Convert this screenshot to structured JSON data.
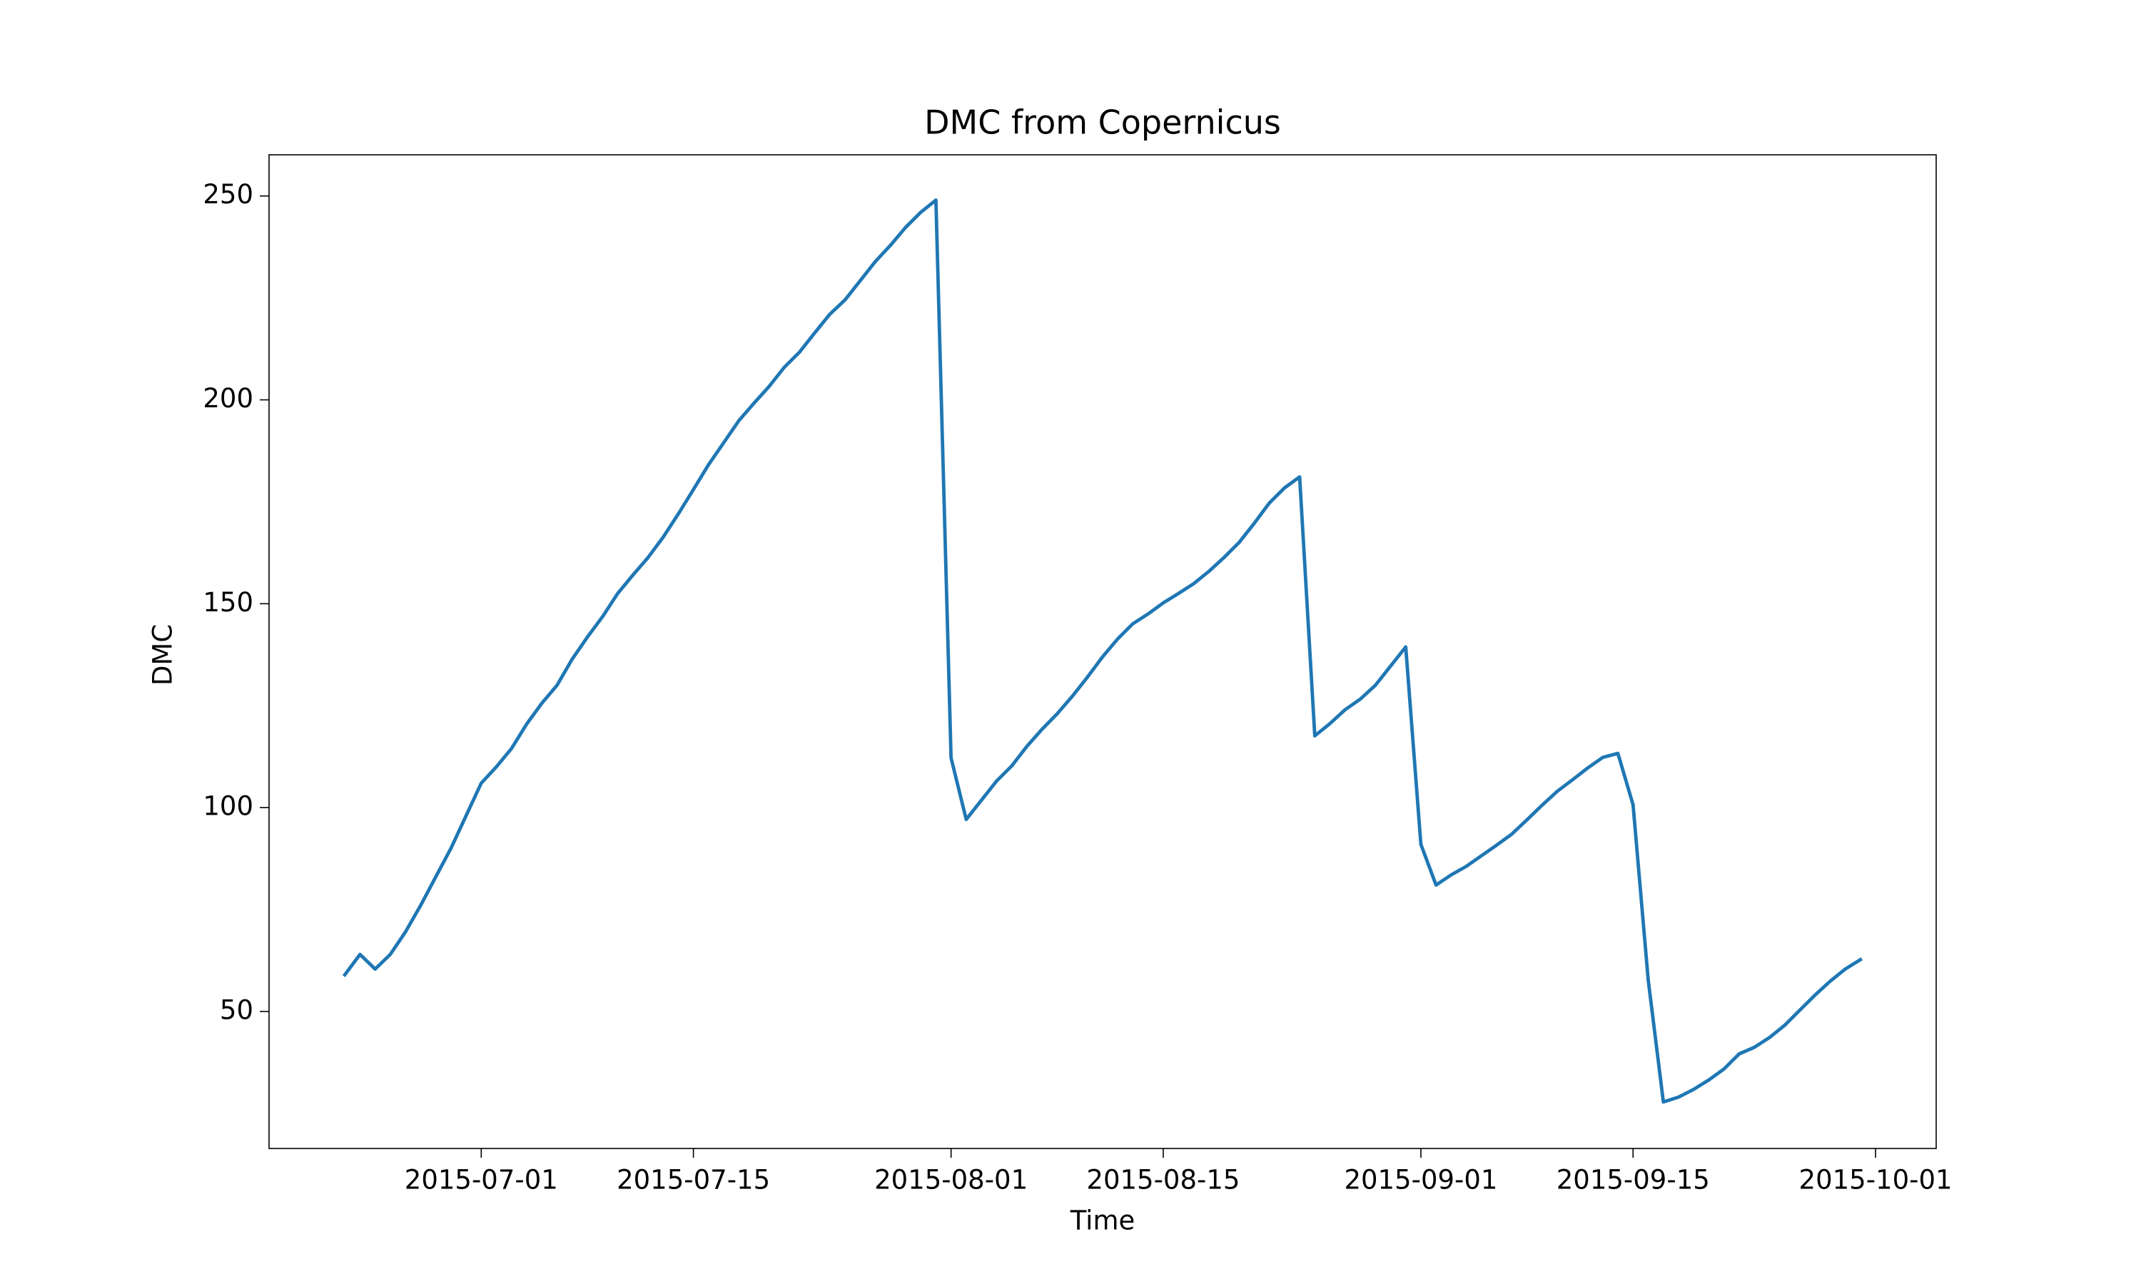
{
  "chart_data": {
    "type": "line",
    "title": "DMC from Copernicus",
    "x_label": "Time",
    "y_label": "DMC",
    "x": [
      "2015-06-22",
      "2015-06-23",
      "2015-06-24",
      "2015-06-25",
      "2015-06-26",
      "2015-06-27",
      "2015-06-28",
      "2015-06-29",
      "2015-06-30",
      "2015-07-01",
      "2015-07-02",
      "2015-07-03",
      "2015-07-04",
      "2015-07-05",
      "2015-07-06",
      "2015-07-07",
      "2015-07-08",
      "2015-07-09",
      "2015-07-10",
      "2015-07-11",
      "2015-07-12",
      "2015-07-13",
      "2015-07-14",
      "2015-07-15",
      "2015-07-16",
      "2015-07-17",
      "2015-07-18",
      "2015-07-19",
      "2015-07-20",
      "2015-07-21",
      "2015-07-22",
      "2015-07-23",
      "2015-07-24",
      "2015-07-25",
      "2015-07-26",
      "2015-07-27",
      "2015-07-28",
      "2015-07-29",
      "2015-07-30",
      "2015-07-31",
      "2015-08-01",
      "2015-08-02",
      "2015-08-03",
      "2015-08-04",
      "2015-08-05",
      "2015-08-06",
      "2015-08-07",
      "2015-08-08",
      "2015-08-09",
      "2015-08-10",
      "2015-08-11",
      "2015-08-12",
      "2015-08-13",
      "2015-08-14",
      "2015-08-15",
      "2015-08-16",
      "2015-08-17",
      "2015-08-18",
      "2015-08-19",
      "2015-08-20",
      "2015-08-21",
      "2015-08-22",
      "2015-08-23",
      "2015-08-24",
      "2015-08-25",
      "2015-08-26",
      "2015-08-27",
      "2015-08-28",
      "2015-08-29",
      "2015-08-30",
      "2015-08-31",
      "2015-09-01",
      "2015-09-02",
      "2015-09-03",
      "2015-09-04",
      "2015-09-05",
      "2015-09-06",
      "2015-09-07",
      "2015-09-08",
      "2015-09-09",
      "2015-09-10",
      "2015-09-11",
      "2015-09-12",
      "2015-09-13",
      "2015-09-14",
      "2015-09-15",
      "2015-09-16",
      "2015-09-17",
      "2015-09-18",
      "2015-09-19",
      "2015-09-20",
      "2015-09-21",
      "2015-09-22",
      "2015-09-23",
      "2015-09-24",
      "2015-09-25",
      "2015-09-26",
      "2015-09-27",
      "2015-09-28",
      "2015-09-29",
      "2015-09-30"
    ],
    "values": [
      59,
      64,
      60.4,
      64,
      69.5,
      76,
      83,
      90,
      98,
      106,
      110,
      114.5,
      120.5,
      125.6,
      130,
      136.4,
      141.8,
      146.8,
      152.5,
      157,
      161.3,
      166.3,
      172,
      178,
      184.1,
      189.5,
      194.9,
      199.2,
      203.3,
      208,
      211.7,
      216.4,
      221,
      224.5,
      229.2,
      233.9,
      237.9,
      242.3,
      246,
      249,
      112.2,
      97.1,
      101.8,
      106.5,
      110.2,
      115,
      119.2,
      123,
      127.3,
      132,
      137,
      141.4,
      145.1,
      147.5,
      150.2,
      152.5,
      154.9,
      157.9,
      161.3,
      165,
      169.7,
      174.7,
      178.4,
      181.1,
      117.6,
      120.6,
      124,
      126.6,
      130,
      134.7,
      139.4,
      91,
      81,
      83.5,
      85.6,
      88.2,
      90.8,
      93.5,
      97,
      100.6,
      104,
      106.8,
      109.7,
      112.3,
      113.3,
      100.7,
      57.7,
      27.8,
      29,
      30.9,
      33.2,
      35.9,
      39.6,
      41.2,
      43.6,
      46.6,
      50.3,
      54,
      57.4,
      60.4,
      62.7
    ],
    "color": "#1f77b4",
    "xlim": [
      "2015-06-17",
      "2015-10-05"
    ],
    "xticks": [
      "2015-07-01",
      "2015-07-15",
      "2015-08-01",
      "2015-08-15",
      "2015-09-01",
      "2015-09-15",
      "2015-10-01"
    ],
    "ylim": [
      16.4,
      260.1
    ],
    "yticks": [
      50,
      100,
      150,
      200,
      250
    ],
    "grid": false
  }
}
